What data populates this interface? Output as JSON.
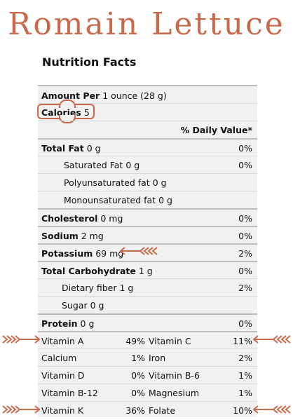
{
  "title": "Romain Lettuce",
  "heading": "Nutrition Facts",
  "serving": {
    "label": "Amount Per",
    "value": "1 ounce (28 g)"
  },
  "calories": {
    "label": "Calories",
    "value": "5"
  },
  "dv_header": "% Daily Value*",
  "nutrients": [
    {
      "label": "Total Fat",
      "amount": "0 g",
      "dv": "0%"
    },
    {
      "label": "Saturated Fat",
      "amount": "0 g",
      "dv": "0%"
    },
    {
      "label": "Polyunsaturated fat",
      "amount": "0 g",
      "dv": ""
    },
    {
      "label": "Monounsaturated fat",
      "amount": "0 g",
      "dv": ""
    },
    {
      "label": "Cholesterol",
      "amount": "0 mg",
      "dv": "0%"
    },
    {
      "label": "Sodium",
      "amount": "2 mg",
      "dv": "0%"
    },
    {
      "label": "Potassium",
      "amount": "69 mg",
      "dv": "2%"
    },
    {
      "label": "Total Carbohydrate",
      "amount": "1 g",
      "dv": "0%"
    },
    {
      "label": "Dietary fiber",
      "amount": "1 g",
      "dv": "2%"
    },
    {
      "label": "Sugar",
      "amount": "0 g",
      "dv": ""
    },
    {
      "label": "Protein",
      "amount": "0 g",
      "dv": "0%"
    }
  ],
  "vitamins": [
    {
      "a_label": "Vitamin A",
      "a_dv": "49%",
      "b_label": "Vitamin C",
      "b_dv": "11%"
    },
    {
      "a_label": "Calcium",
      "a_dv": "1%",
      "b_label": "Iron",
      "b_dv": "2%"
    },
    {
      "a_label": "Vitamin D",
      "a_dv": "0%",
      "b_label": "Vitamin B-6",
      "b_dv": "1%"
    },
    {
      "a_label": "Vitamin B-12",
      "a_dv": "0%",
      "b_label": "Magnesium",
      "b_dv": "1%"
    },
    {
      "a_label": "Vitamin K",
      "a_dv": "36%",
      "b_label": "Folate",
      "b_dv": "10%"
    }
  ],
  "colors": {
    "accent": "#c9694b",
    "panel": "#f1f1f1",
    "rule": "#bdbdbd"
  }
}
